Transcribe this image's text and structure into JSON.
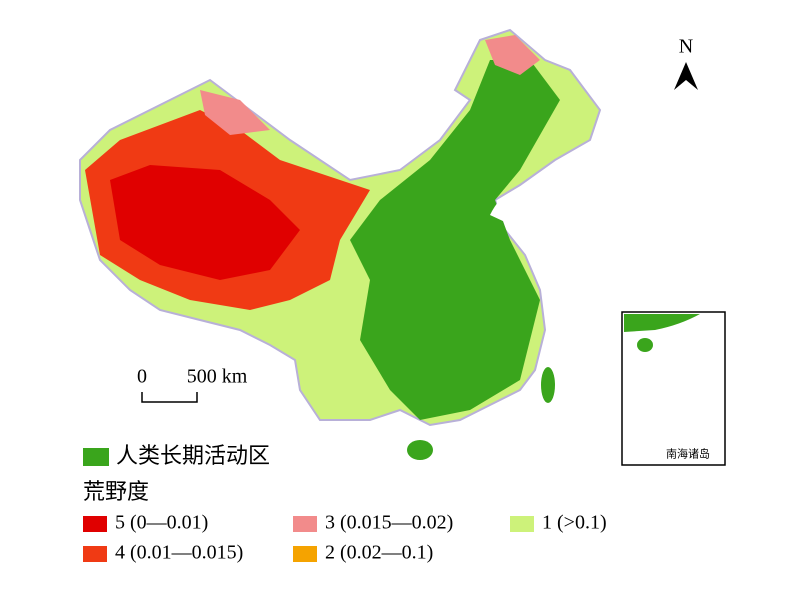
{
  "north_arrow": "N",
  "scale_bar": {
    "start": "0",
    "end": "500 km"
  },
  "inset_label": "南海诸岛",
  "legend": {
    "human_area": {
      "label": "人类长期活动区",
      "color": "#3aa51c"
    },
    "title": "荒野度",
    "classes": [
      {
        "label": "5 (0—0.01)",
        "color": "#e00000"
      },
      {
        "label": "4 (0.01—0.015)",
        "color": "#f03a14"
      },
      {
        "label": "3 (0.015—0.02)",
        "color": "#f28b8b"
      },
      {
        "label": "2 (0.02—0.1)",
        "color": "#f5a300"
      },
      {
        "label": "1 (>0.1)",
        "color": "#cdf27a"
      }
    ]
  }
}
